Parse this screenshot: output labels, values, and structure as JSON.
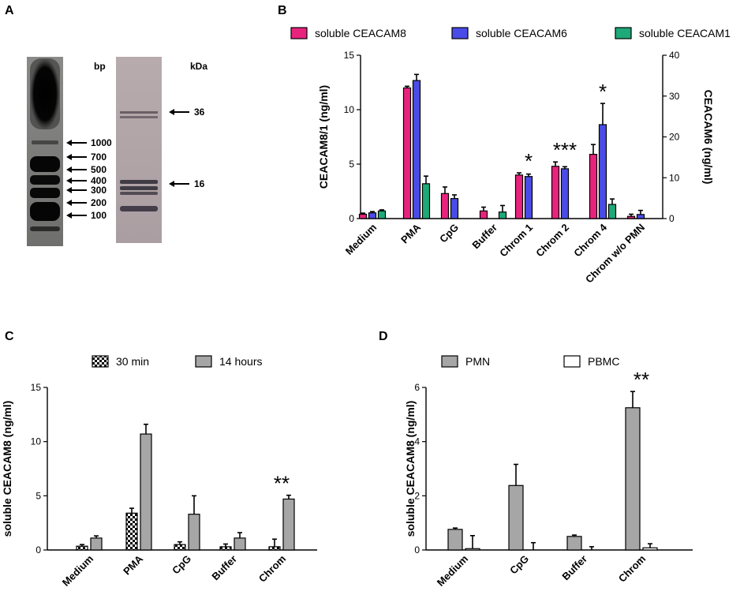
{
  "panels": {
    "A": {
      "letter": "A",
      "bp_label": "bp",
      "kda_label": "kDa",
      "bp_markers": [
        "1000",
        "700",
        "500",
        "400",
        "300",
        "200",
        "100"
      ],
      "kda_markers": [
        "36",
        "16"
      ]
    },
    "B": {
      "letter": "B"
    },
    "C": {
      "letter": "C"
    },
    "D": {
      "letter": "D"
    }
  },
  "colors": {
    "ceacam8": "#e8237e",
    "ceacam6": "#4a4ce8",
    "ceacam1": "#1daa78",
    "gray_bar": "#a6a6a6",
    "pbmc": "#ffffff"
  },
  "chart_data": [
    {
      "id": "B",
      "type": "bar",
      "categories": [
        "Medium",
        "PMA",
        "CpG",
        "Buffer",
        "Chrom 1",
        "Chrom 2",
        "Chrom 4",
        "Chrom w/o PMN"
      ],
      "series": [
        {
          "name": "soluble CEACAM8",
          "axis": "left",
          "values": [
            0.4,
            12.0,
            2.3,
            0.7,
            4.0,
            4.8,
            5.9,
            0.2
          ],
          "errors": [
            0.1,
            0.15,
            0.6,
            0.35,
            0.2,
            0.4,
            0.9,
            0.2
          ]
        },
        {
          "name": "soluble CEACAM6",
          "axis": "right",
          "values": [
            1.4,
            33.8,
            4.9,
            0.0,
            10.3,
            12.2,
            23.0,
            1.0
          ],
          "errors": [
            0.3,
            1.5,
            0.9,
            0.0,
            0.6,
            0.5,
            5.2,
            1.0
          ]
        },
        {
          "name": "soluble CEACAM1",
          "axis": "left",
          "values": [
            0.7,
            3.2,
            0.0,
            0.6,
            0.0,
            0.0,
            1.3,
            0.0
          ],
          "errors": [
            0.1,
            0.7,
            0.0,
            0.6,
            0.0,
            0.0,
            0.5,
            0.0
          ]
        }
      ],
      "ylabel": "CEACAM8/1 (ng/ml)",
      "ylabel_right": "CEACAM6 (ng/ml)",
      "ylim": [
        0,
        15
      ],
      "yticks": [
        "0",
        "5",
        "10",
        "15"
      ],
      "ylim_right": [
        0,
        40
      ],
      "yticks_right": [
        "0",
        "10",
        "20",
        "30",
        "40"
      ],
      "annotations": [
        {
          "category": "Chrom 1",
          "text": "*"
        },
        {
          "category": "Chrom 2",
          "text": "***"
        },
        {
          "category": "Chrom 4",
          "text": "*"
        }
      ],
      "legend": "top"
    },
    {
      "id": "C",
      "type": "bar",
      "categories": [
        "Medium",
        "PMA",
        "CpG",
        "Buffer",
        "Chrom"
      ],
      "series": [
        {
          "name": "30 min",
          "pattern": "checker",
          "values": [
            0.35,
            3.4,
            0.5,
            0.3,
            0.3
          ],
          "errors": [
            0.15,
            0.45,
            0.25,
            0.25,
            0.7
          ]
        },
        {
          "name": "14 hours",
          "pattern": "gray",
          "values": [
            1.1,
            10.7,
            3.3,
            1.1,
            4.7
          ],
          "errors": [
            0.2,
            0.9,
            1.7,
            0.5,
            0.35
          ]
        }
      ],
      "ylabel": "soluble CEACAM8 (ng/ml)",
      "ylim": [
        0,
        15
      ],
      "yticks": [
        "0",
        "5",
        "10",
        "15"
      ],
      "annotations": [
        {
          "category": "Chrom",
          "text": "**"
        }
      ],
      "legend": "top"
    },
    {
      "id": "D",
      "type": "bar",
      "categories": [
        "Medium",
        "CpG",
        "Buffer",
        "Chrom"
      ],
      "series": [
        {
          "name": "PMN",
          "pattern": "gray",
          "values": [
            0.76,
            2.38,
            0.5,
            5.25
          ],
          "errors": [
            0.05,
            0.78,
            0.05,
            0.6
          ]
        },
        {
          "name": "PBMC",
          "pattern": "white",
          "values": [
            0.05,
            0.0,
            0.0,
            0.08
          ],
          "errors": [
            0.48,
            0.27,
            0.12,
            0.15
          ]
        }
      ],
      "ylabel": "soluble CEACAM8 (ng/ml)",
      "ylim": [
        0,
        6
      ],
      "yticks": [
        "0",
        "2",
        "4",
        "6"
      ],
      "annotations": [
        {
          "category": "Chrom",
          "text": "**"
        }
      ],
      "legend": "top"
    }
  ]
}
